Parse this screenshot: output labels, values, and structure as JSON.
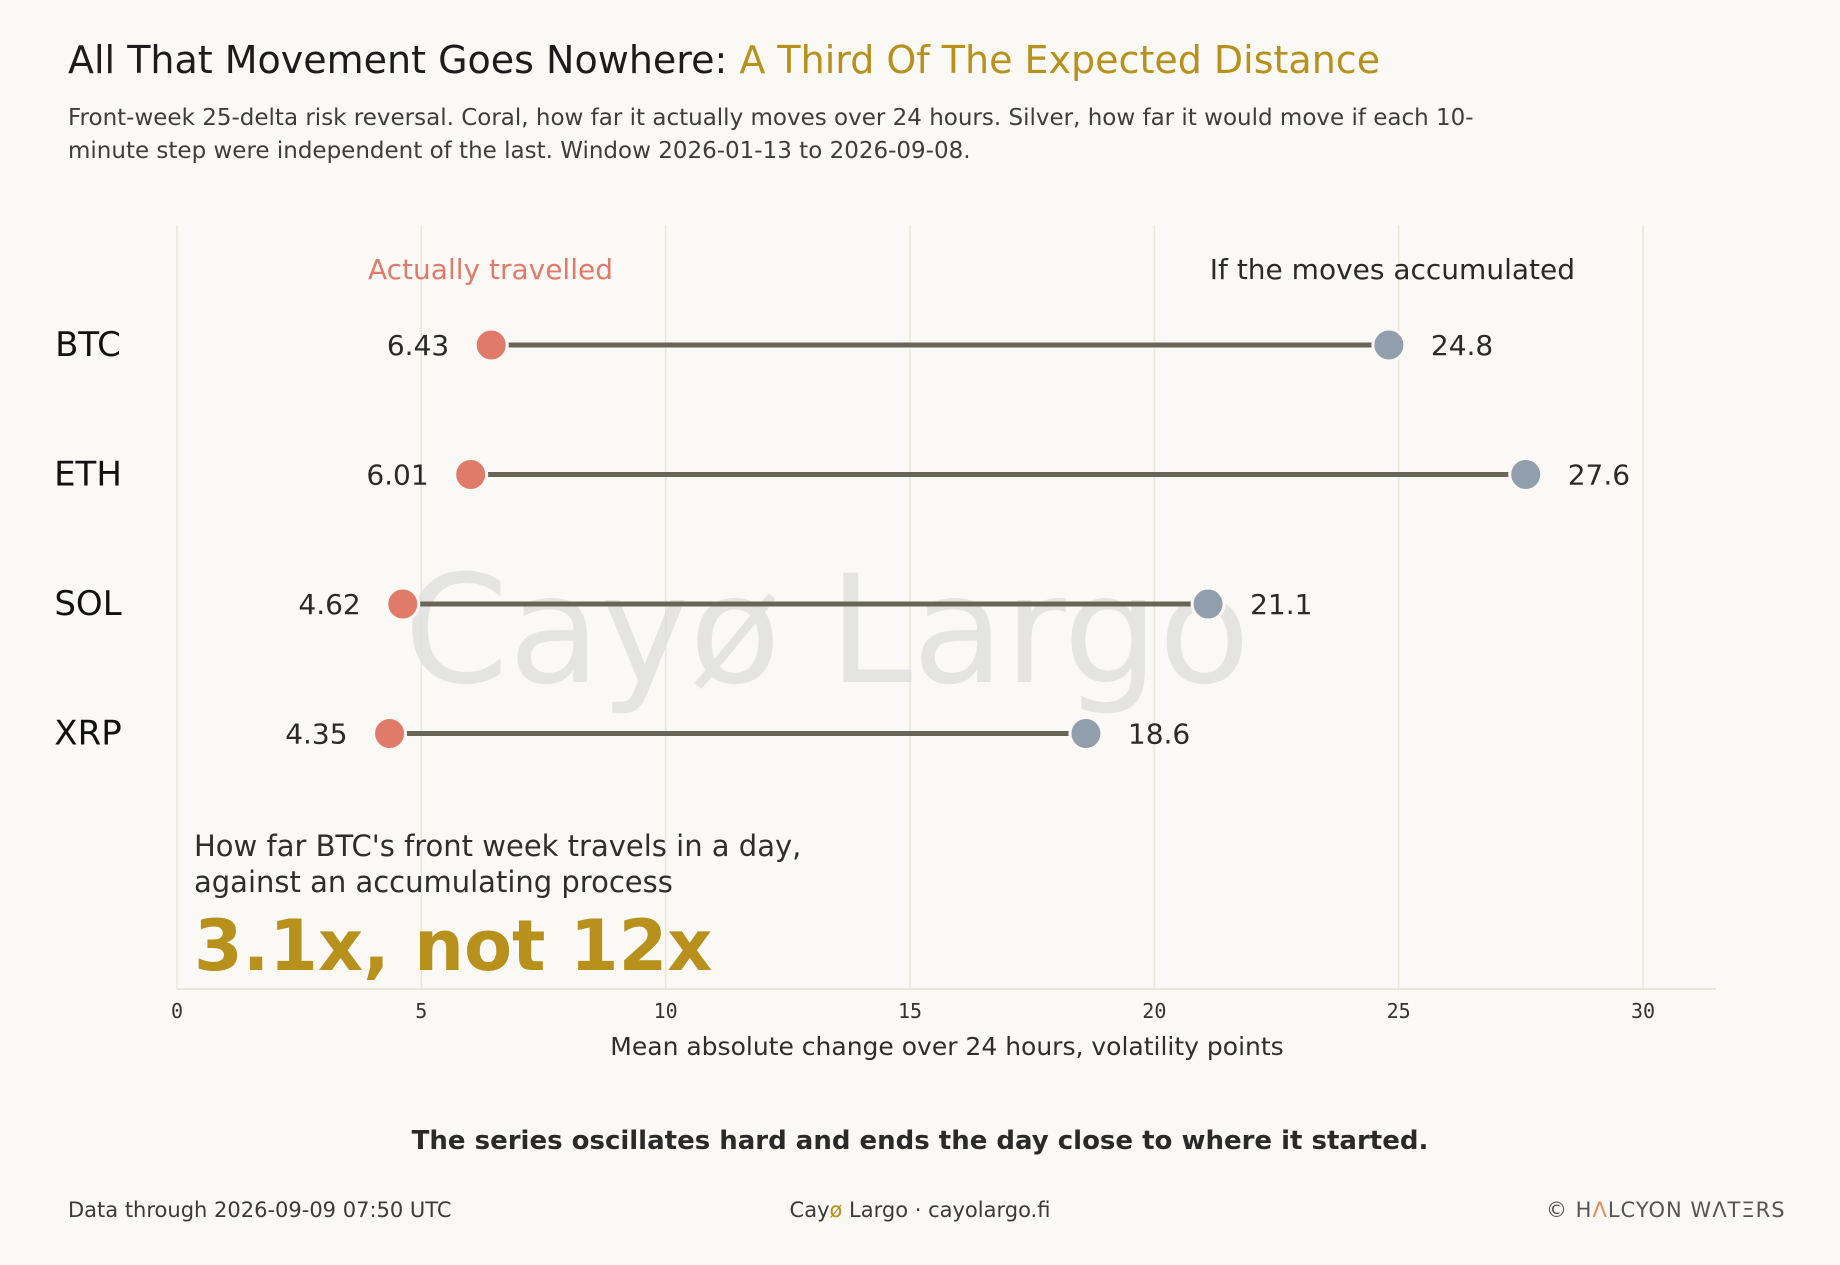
{
  "header": {
    "title_main": "All That Movement Goes Nowhere:",
    "title_accent": "A Third Of The Expected Distance",
    "subtitle": "Front-week 25-delta risk reversal. Coral, how far it actually moves over 24 hours. Silver, how far it would move if each 10-minute step were independent of the last. Window 2026-01-13 to 2026-09-08."
  },
  "chart_data": {
    "type": "dumbbell",
    "categories": [
      "BTC",
      "ETH",
      "SOL",
      "XRP"
    ],
    "series": [
      {
        "name": "Actually travelled",
        "values": [
          6.43,
          6.01,
          4.62,
          4.35
        ],
        "labels": [
          "6.43",
          "6.01",
          "4.62",
          "4.35"
        ],
        "color": "#e07b6a"
      },
      {
        "name": "If the moves accumulated",
        "values": [
          24.8,
          27.6,
          21.1,
          18.6
        ],
        "labels": [
          "24.8",
          "27.6",
          "21.1",
          "18.6"
        ],
        "color": "#919eab"
      }
    ],
    "xlim": [
      0,
      30
    ],
    "x_ticks": [
      0,
      5,
      10,
      15,
      20,
      25,
      30
    ],
    "x_tick_labels": [
      "0",
      "5",
      "10",
      "15",
      "20",
      "25",
      "30"
    ],
    "xlabel": "Mean absolute change over 24 hours, volatility points",
    "grid": "vertical",
    "connector_color": "#6b6558",
    "watermark": "Cayø Largo"
  },
  "callout": {
    "lead": "How far BTC's front week travels in a day, against an accumulating process",
    "big": "3.1x, not 12x"
  },
  "takeaway": "The series oscillates hard and ends the day close to where it started.",
  "footer": {
    "left": "Data through 2026-09-09 07:50 UTC",
    "brand_a": "Cay",
    "brand_slash": "ø",
    "brand_b": " Largo",
    "separator": " · ",
    "site": "cayolargo.fi",
    "copyright_a": "© H",
    "copyright_tri": "Λ",
    "copyright_b": "LCYON WΛTΞRS"
  },
  "colors": {
    "accent": "#b8901c",
    "coral": "#e07b6a",
    "silver": "#919eab",
    "background": "#faf9f5"
  }
}
